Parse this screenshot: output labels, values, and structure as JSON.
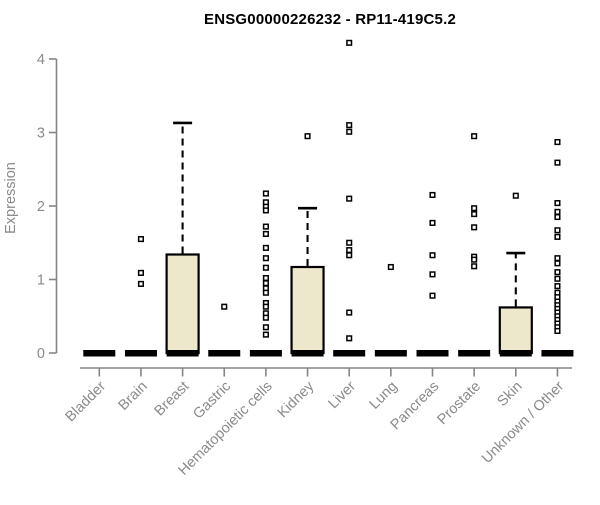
{
  "title": "ENSG00000226232 - RP11-419C5.2",
  "chart_data": {
    "type": "boxplot",
    "title": "ENSG00000226232 - RP11-419C5.2",
    "xlabel": "",
    "ylabel": "Expression",
    "ylim": [
      0,
      4.3
    ],
    "yticks": [
      0,
      1,
      2,
      3,
      4
    ],
    "grid": false,
    "legend": "none",
    "colors": {
      "box_fill": "#EDE7CC",
      "box_stroke": "#000000",
      "axis": "#858585",
      "tick_label": "#8a8a8a",
      "title": "#000000",
      "background": "#ffffff"
    },
    "categories": [
      "Bladder",
      "Brain",
      "Breast",
      "Gastric",
      "Hematopoietic cells",
      "Kidney",
      "Liver",
      "Lung",
      "Pancreas",
      "Prostate",
      "Skin",
      "Unknown / Other"
    ],
    "boxes": [
      {
        "category": "Bladder",
        "median": 0,
        "q1": 0,
        "q3": 0,
        "whisker_low": 0,
        "whisker_high": 0,
        "outliers": []
      },
      {
        "category": "Brain",
        "median": 0,
        "q1": 0,
        "q3": 0,
        "whisker_low": 0,
        "whisker_high": 0,
        "outliers": [
          1.55,
          1.09,
          0.94
        ]
      },
      {
        "category": "Breast",
        "median": 0,
        "q1": 0,
        "q3": 1.34,
        "whisker_low": 0,
        "whisker_high": 3.13,
        "outliers": []
      },
      {
        "category": "Gastric",
        "median": 0,
        "q1": 0,
        "q3": 0,
        "whisker_low": 0,
        "whisker_high": 0,
        "outliers": [
          0.63
        ]
      },
      {
        "category": "Hematopoietic cells",
        "median": 0,
        "q1": 0,
        "q3": 0,
        "whisker_low": 0,
        "whisker_high": 0,
        "outliers": [
          2.17,
          2.05,
          1.99,
          1.94,
          1.72,
          1.62,
          1.43,
          1.29,
          1.16,
          1.02,
          0.95,
          0.88,
          0.82,
          0.68,
          0.63,
          0.54,
          0.48,
          0.35,
          0.25
        ]
      },
      {
        "category": "Kidney",
        "median": 0,
        "q1": 0,
        "q3": 1.17,
        "whisker_low": 0,
        "whisker_high": 1.97,
        "outliers": [
          2.95
        ]
      },
      {
        "category": "Liver",
        "median": 0,
        "q1": 0,
        "q3": 0,
        "whisker_low": 0,
        "whisker_high": 0,
        "outliers": [
          4.22,
          3.1,
          3.01,
          2.1,
          1.5,
          1.4,
          1.33,
          0.55,
          0.2
        ]
      },
      {
        "category": "Lung",
        "median": 0,
        "q1": 0,
        "q3": 0,
        "whisker_low": 0,
        "whisker_high": 0,
        "outliers": [
          1.17
        ]
      },
      {
        "category": "Pancreas",
        "median": 0,
        "q1": 0,
        "q3": 0,
        "whisker_low": 0,
        "whisker_high": 0,
        "outliers": [
          2.15,
          1.77,
          1.33,
          1.07,
          0.78
        ]
      },
      {
        "category": "Prostate",
        "median": 0,
        "q1": 0,
        "q3": 0,
        "whisker_low": 0,
        "whisker_high": 0,
        "outliers": [
          2.95,
          1.97,
          1.89,
          1.71,
          1.31,
          1.27,
          1.18
        ]
      },
      {
        "category": "Skin",
        "median": 0,
        "q1": 0,
        "q3": 0.62,
        "whisker_low": 0,
        "whisker_high": 1.36,
        "outliers": [
          2.14
        ]
      },
      {
        "category": "Unknown / Other",
        "median": 0,
        "q1": 0,
        "q3": 0,
        "whisker_low": 0,
        "whisker_high": 0,
        "outliers": [
          2.87,
          2.59,
          2.04,
          1.92,
          1.85,
          1.67,
          1.58,
          1.29,
          1.22,
          1.1,
          1.01,
          0.91,
          0.82,
          0.76,
          0.7,
          0.65,
          0.6,
          0.55,
          0.5,
          0.45,
          0.4,
          0.35,
          0.3
        ]
      }
    ]
  }
}
